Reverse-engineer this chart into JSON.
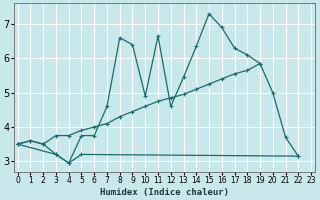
{
  "xlabel": "Humidex (Indice chaleur)",
  "bg_color": "#c8e8ec",
  "grid_color": "#ffffff",
  "line_color": "#1a6b6b",
  "xlim": [
    -0.3,
    23.3
  ],
  "ylim": [
    2.7,
    7.6
  ],
  "xticks": [
    0,
    1,
    2,
    3,
    4,
    5,
    6,
    7,
    8,
    9,
    10,
    11,
    12,
    13,
    14,
    15,
    16,
    17,
    18,
    19,
    20,
    21,
    22,
    23
  ],
  "yticks": [
    3,
    4,
    5,
    6,
    7
  ],
  "line1_x": [
    0,
    1,
    2,
    3,
    4,
    5,
    6,
    7,
    8,
    9,
    10,
    11,
    12,
    13,
    14,
    15,
    16,
    17,
    18,
    19,
    20,
    21,
    22
  ],
  "line1_y": [
    3.5,
    3.6,
    3.5,
    3.2,
    2.95,
    3.75,
    3.75,
    4.6,
    6.6,
    6.4,
    4.9,
    6.65,
    4.6,
    5.45,
    6.35,
    7.3,
    6.9,
    6.3,
    6.1,
    5.85,
    5.0,
    3.7,
    3.15
  ],
  "line2_x": [
    0,
    3,
    4,
    5,
    22
  ],
  "line2_y": [
    3.5,
    3.2,
    2.95,
    3.2,
    3.15
  ],
  "line3_x": [
    0,
    1,
    2,
    3,
    4,
    5,
    6,
    7,
    8,
    9,
    10,
    11,
    12,
    13,
    14,
    15,
    16,
    17,
    18,
    19
  ],
  "line3_y": [
    3.5,
    3.6,
    3.5,
    3.75,
    3.75,
    3.9,
    4.0,
    4.1,
    4.3,
    4.45,
    4.6,
    4.75,
    4.85,
    4.95,
    5.1,
    5.25,
    5.4,
    5.55,
    5.65,
    5.85
  ]
}
